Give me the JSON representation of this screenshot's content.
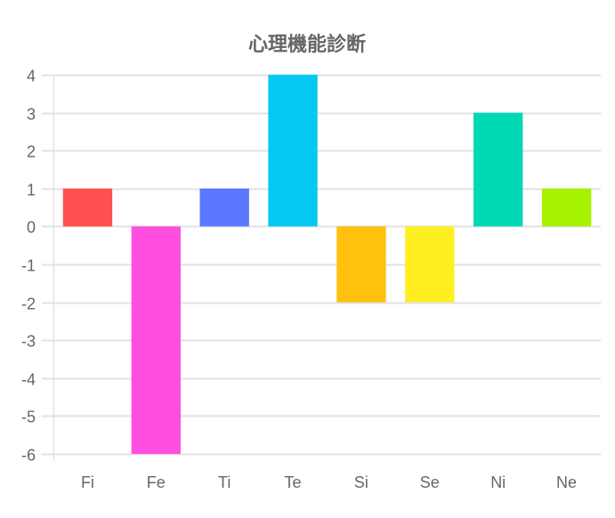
{
  "chart_data": {
    "type": "bar",
    "title": "心理機能診断",
    "categories": [
      "Fi",
      "Fe",
      "Ti",
      "Te",
      "Si",
      "Se",
      "Ni",
      "Ne"
    ],
    "values": [
      1,
      -6,
      1,
      4,
      -2,
      -2,
      3,
      1
    ],
    "colors": [
      "#ff4f4f",
      "#ff4fe0",
      "#5b77ff",
      "#04c9f0",
      "#ffc10e",
      "#ffee22",
      "#00d8b6",
      "#a6f200"
    ],
    "ylim": [
      -6,
      4
    ],
    "yticks": [
      "4",
      "3",
      "2",
      "1",
      "0",
      "-1",
      "-2",
      "-3",
      "-4",
      "-5",
      "-6"
    ],
    "grid": true,
    "legend": "none",
    "xlabel": "",
    "ylabel": ""
  }
}
